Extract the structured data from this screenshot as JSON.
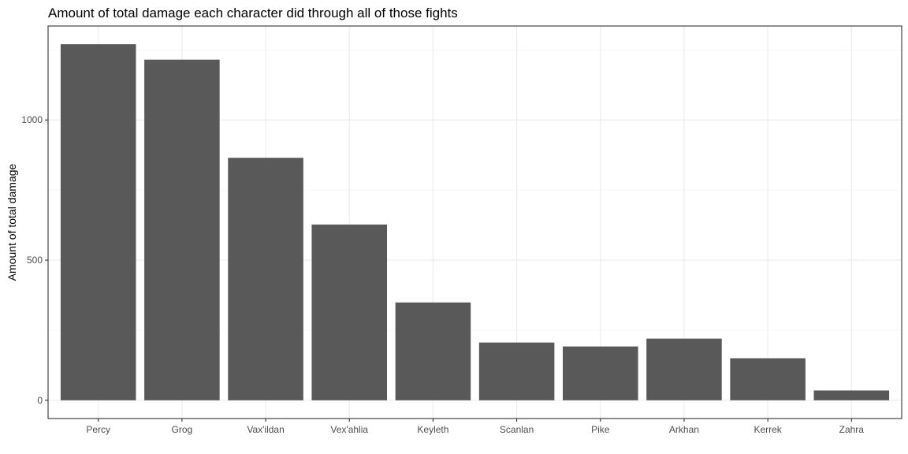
{
  "chart_data": {
    "type": "bar",
    "title": "Amount of total damage each character did through all of those fights",
    "xlabel": "",
    "ylabel": "Amount of total damage",
    "categories": [
      "Percy",
      "Grog",
      "Vax'ildan",
      "Vex'ahlia",
      "Keyleth",
      "Scanlan",
      "Pike",
      "Arkhan",
      "Kerrek",
      "Zahra"
    ],
    "values": [
      1270,
      1215,
      865,
      627,
      349,
      206,
      192,
      220,
      150,
      35
    ],
    "ylim": [
      -65,
      1335
    ],
    "yticks": [
      0,
      500,
      1000
    ],
    "ytick_labels": [
      "0",
      "500",
      "1000"
    ],
    "bar_color": "#595959",
    "grid": true,
    "legend": "none"
  }
}
